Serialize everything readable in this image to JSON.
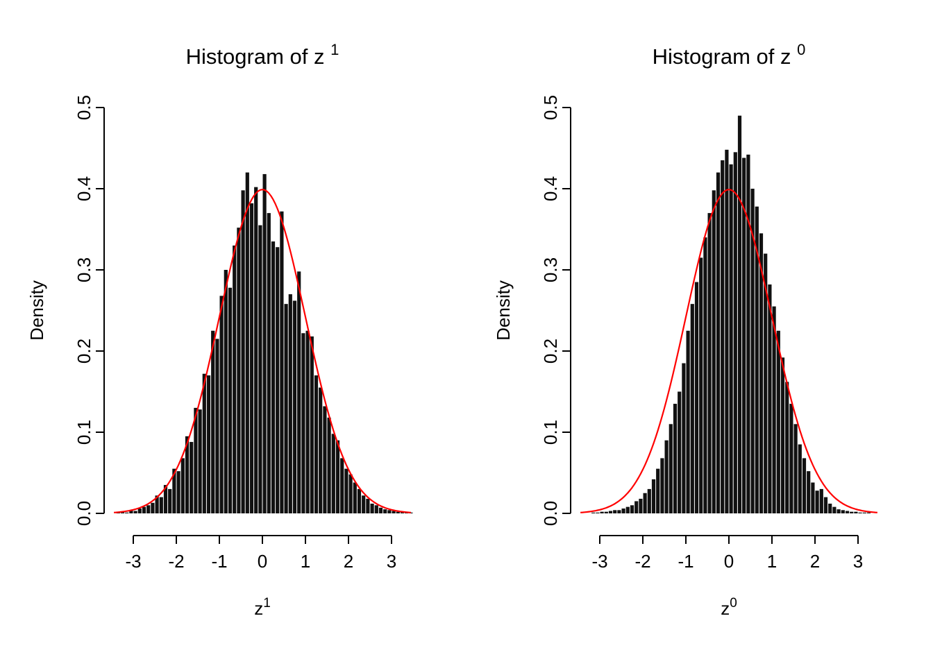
{
  "page": {
    "background": "#ffffff"
  },
  "chart_data": [
    {
      "type": "bar",
      "subtype": "histogram",
      "title": "Histogram of z",
      "title_sup": "1",
      "xlabel": "z",
      "xlabel_sup": "1",
      "ylabel": "Density",
      "xlim": [
        -3.6,
        3.6
      ],
      "ylim": [
        0,
        0.5
      ],
      "x_ticks": [
        -3,
        -2,
        -1,
        0,
        1,
        2,
        3
      ],
      "x_tick_labels": [
        "-3",
        "-2",
        "-1",
        "0",
        "1",
        "2",
        "3"
      ],
      "y_ticks": [
        0.0,
        0.1,
        0.2,
        0.3,
        0.4,
        0.5
      ],
      "y_tick_labels": [
        "0.0",
        "0.1",
        "0.2",
        "0.3",
        "0.4",
        "0.5"
      ],
      "grid": false,
      "bar_color": "#111111",
      "bin_start": -3.5,
      "bin_width": 0.1,
      "bar_heights": [
        0.0,
        0.001,
        0.002,
        0.001,
        0.004,
        0.003,
        0.006,
        0.008,
        0.01,
        0.013,
        0.022,
        0.02,
        0.035,
        0.03,
        0.055,
        0.052,
        0.068,
        0.095,
        0.088,
        0.13,
        0.128,
        0.172,
        0.17,
        0.225,
        0.215,
        0.268,
        0.3,
        0.278,
        0.33,
        0.352,
        0.398,
        0.42,
        0.382,
        0.402,
        0.355,
        0.418,
        0.37,
        0.335,
        0.328,
        0.372,
        0.258,
        0.27,
        0.262,
        0.298,
        0.222,
        0.225,
        0.218,
        0.17,
        0.155,
        0.132,
        0.118,
        0.098,
        0.09,
        0.068,
        0.055,
        0.048,
        0.038,
        0.03,
        0.022,
        0.018,
        0.012,
        0.01,
        0.007,
        0.005,
        0.004,
        0.003,
        0.002,
        0.002,
        0.001,
        0.001
      ],
      "curve": {
        "type": "normal-density",
        "mean": 0,
        "sd": 1,
        "color": "#ff0000"
      }
    },
    {
      "type": "bar",
      "subtype": "histogram",
      "title": "Histogram of z",
      "title_sup": "0",
      "xlabel": "z",
      "xlabel_sup": "0",
      "ylabel": "Density",
      "xlim": [
        -3.6,
        3.6
      ],
      "ylim": [
        0,
        0.5
      ],
      "x_ticks": [
        -3,
        -2,
        -1,
        0,
        1,
        2,
        3
      ],
      "x_tick_labels": [
        "-3",
        "-2",
        "-1",
        "0",
        "1",
        "2",
        "3"
      ],
      "y_ticks": [
        0.0,
        0.1,
        0.2,
        0.3,
        0.4,
        0.5
      ],
      "y_tick_labels": [
        "0.0",
        "0.1",
        "0.2",
        "0.3",
        "0.4",
        "0.5"
      ],
      "grid": false,
      "bar_color": "#111111",
      "bin_start": -3.5,
      "bin_width": 0.1,
      "bar_heights": [
        0.0,
        0.0,
        0.0,
        0.001,
        0.001,
        0.002,
        0.002,
        0.003,
        0.004,
        0.004,
        0.006,
        0.008,
        0.01,
        0.015,
        0.018,
        0.025,
        0.03,
        0.042,
        0.055,
        0.068,
        0.09,
        0.11,
        0.135,
        0.15,
        0.185,
        0.225,
        0.258,
        0.285,
        0.315,
        0.34,
        0.37,
        0.398,
        0.42,
        0.435,
        0.448,
        0.43,
        0.445,
        0.49,
        0.438,
        0.442,
        0.4,
        0.378,
        0.345,
        0.32,
        0.282,
        0.255,
        0.225,
        0.192,
        0.162,
        0.135,
        0.11,
        0.085,
        0.068,
        0.052,
        0.038,
        0.028,
        0.03,
        0.02,
        0.012,
        0.008,
        0.005,
        0.004,
        0.003,
        0.002,
        0.002,
        0.001,
        0.001,
        0.001,
        0.0,
        0.0
      ],
      "curve": {
        "type": "normal-density",
        "mean": 0,
        "sd": 1,
        "color": "#ff0000"
      }
    }
  ]
}
